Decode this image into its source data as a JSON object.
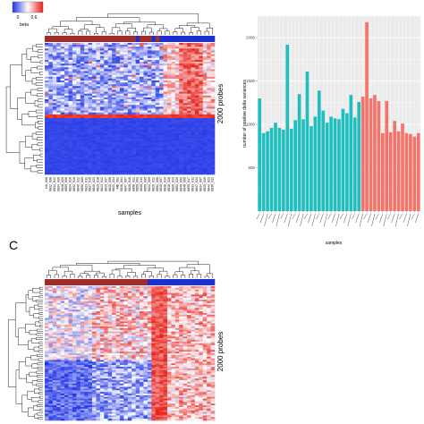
{
  "figure": {
    "panel_label": "C"
  },
  "heatmap_top": {
    "legend_title": "beta",
    "legend_ticks": [
      "0",
      "0.6"
    ],
    "ylabel": "2000 probes",
    "xlabel": "samples",
    "sample_labels": [
      "HA_008",
      "6832_008",
      "6831_021",
      "6834_020",
      "6848_020",
      "6859_006",
      "6824_016",
      "6832_018",
      "6840_022",
      "6856_009",
      "6823_011",
      "6837_015",
      "6840_023",
      "6829_018",
      "6843_012",
      "6819_027",
      "6840_006",
      "6821_014",
      "MB_002",
      "6848_004",
      "6847_007",
      "6826_018",
      "6858_022",
      "6859_003",
      "6848_011",
      "6859_005",
      "6822_009",
      "6826_012",
      "6861_008",
      "6845_007",
      "6838_014",
      "6818_028",
      "6836_013",
      "6852_020",
      "6849_002",
      "6848_006",
      "6855_017",
      "6833_011",
      "6847_021",
      "6834_007",
      "6825_019",
      "6844_023",
      "6836_011"
    ],
    "colors": {
      "low": "#1f33e6",
      "mid": "#ffffff",
      "high": "#e8201a",
      "group_a": "#a52a2a",
      "group_b": "#1c2fd6"
    }
  },
  "heatmap_bottom": {
    "ylabel": "2000 probes"
  },
  "chart_data": {
    "type": "bar",
    "title": "",
    "xlabel": "samples",
    "ylabel": "number of positive delta variances",
    "ylim": [
      0,
      2250
    ],
    "y_ticks": [
      500,
      1000,
      1500,
      2000
    ],
    "grid": true,
    "legend": "none",
    "series_colors": [
      "#1fbfbf",
      "#f2746a"
    ],
    "series": [
      {
        "group": 1,
        "values": [
          1300,
          900,
          920,
          960,
          1020,
          960,
          940,
          1920,
          950,
          1050,
          1350,
          1060,
          1610,
          980,
          1090,
          1390,
          1160,
          1020,
          1090,
          1070,
          1060,
          1180,
          1130,
          1340,
          1080,
          1260
        ]
      },
      {
        "group": 2,
        "values": [
          1320,
          2180,
          1300,
          1340,
          1270,
          900,
          1270,
          910,
          1040,
          920,
          1010,
          900,
          890,
          860,
          900
        ]
      }
    ]
  }
}
